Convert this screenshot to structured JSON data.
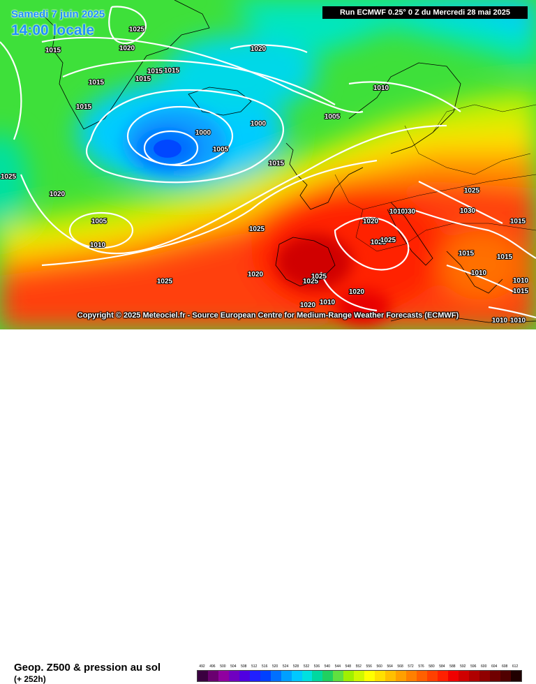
{
  "header": {
    "date": "Samedi 7 juin 2025",
    "time": "14:00 locale",
    "run_info": "Run ECMWF 0.25° 0 Z du Mercredi 28 mai 2025"
  },
  "footer": {
    "copyright": "Copyright © 2025 Meteociel.fr - Source European Centre for Medium-Range Weather Forecasts (ECMWF)",
    "field_title": "Geop. Z500 & pression au sol",
    "forecast_range": "(+ 252h)"
  },
  "legend": {
    "values": [
      "492",
      "496",
      "500",
      "504",
      "508",
      "512",
      "516",
      "520",
      "524",
      "528",
      "532",
      "536",
      "540",
      "544",
      "548",
      "552",
      "556",
      "560",
      "564",
      "568",
      "572",
      "576",
      "580",
      "584",
      "588",
      "592",
      "596",
      "600",
      "604",
      "608",
      "612"
    ],
    "colors": [
      "#3a0040",
      "#6a0070",
      "#9000a0",
      "#7000c0",
      "#5000e0",
      "#2020ff",
      "#0040ff",
      "#0070ff",
      "#00a0ff",
      "#00c8ff",
      "#00e0e0",
      "#00d8a0",
      "#20d060",
      "#60e040",
      "#a0f000",
      "#d0f800",
      "#ffff00",
      "#ffe000",
      "#ffc000",
      "#ffa000",
      "#ff8000",
      "#ff6000",
      "#ff4000",
      "#ff2000",
      "#f00000",
      "#d00000",
      "#b00000",
      "#900000",
      "#700000",
      "#500000",
      "#200000"
    ]
  },
  "isobars": [
    {
      "label": "1025"
    },
    {
      "label": "1020"
    },
    {
      "label": "1020"
    },
    {
      "label": "1015"
    },
    {
      "label": "1015"
    },
    {
      "label": "1015"
    },
    {
      "label": "1015"
    },
    {
      "label": "1015"
    },
    {
      "label": "1015"
    },
    {
      "label": "1000"
    },
    {
      "label": "1000"
    },
    {
      "label": "1005"
    },
    {
      "label": "1005"
    },
    {
      "label": "1010"
    },
    {
      "label": "1015"
    },
    {
      "label": "1025"
    },
    {
      "label": "1020"
    },
    {
      "label": "1005"
    },
    {
      "label": "1010"
    },
    {
      "label": "1025"
    },
    {
      "label": "1020"
    },
    {
      "label": "1025"
    },
    {
      "label": "1030"
    },
    {
      "label": "1010"
    },
    {
      "label": "1030"
    },
    {
      "label": "1025"
    },
    {
      "label": "1025"
    },
    {
      "label": "1025"
    },
    {
      "label": "1015"
    },
    {
      "label": "1015"
    },
    {
      "label": "1010"
    },
    {
      "label": "1025"
    },
    {
      "label": "1020"
    },
    {
      "label": "1020"
    },
    {
      "label": "1020"
    },
    {
      "label": "1010"
    },
    {
      "label": "1015"
    },
    {
      "label": "1010"
    },
    {
      "label": "1010"
    },
    {
      "label": "1010"
    },
    {
      "label": "1025"
    },
    {
      "label": "1015"
    }
  ]
}
